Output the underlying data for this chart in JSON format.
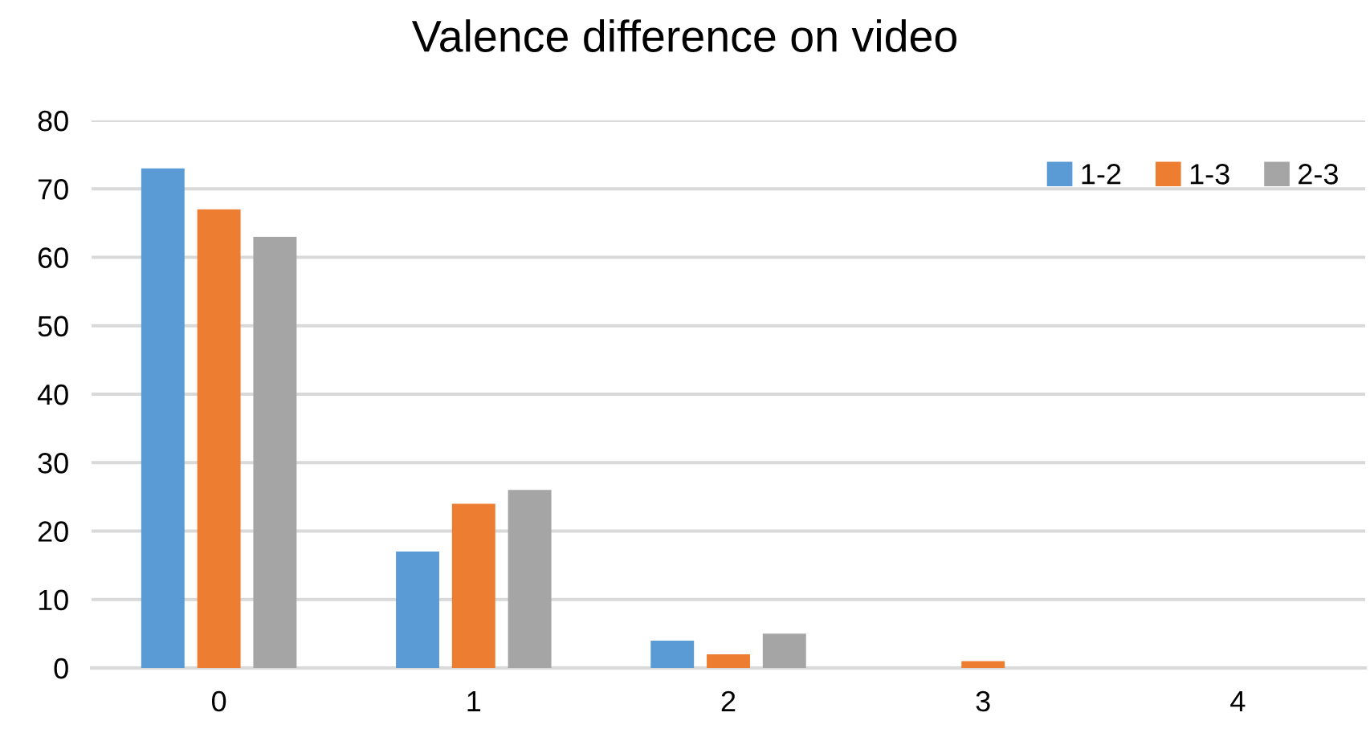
{
  "chart_data": {
    "type": "bar",
    "title": "Valence difference on video",
    "categories": [
      "0",
      "1",
      "2",
      "3",
      "4"
    ],
    "series": [
      {
        "name": "1-2",
        "color": "#5b9bd5",
        "values": [
          73,
          17,
          4,
          0,
          0
        ]
      },
      {
        "name": "1-3",
        "color": "#ed7d31",
        "values": [
          67,
          24,
          2,
          1,
          0
        ]
      },
      {
        "name": "2-3",
        "color": "#a5a5a5",
        "values": [
          63,
          26,
          5,
          0,
          0
        ]
      }
    ],
    "ylim": [
      0,
      80
    ],
    "yticks": [
      0,
      10,
      20,
      30,
      40,
      50,
      60,
      70,
      80
    ],
    "grid": "y",
    "legend": "top right"
  }
}
